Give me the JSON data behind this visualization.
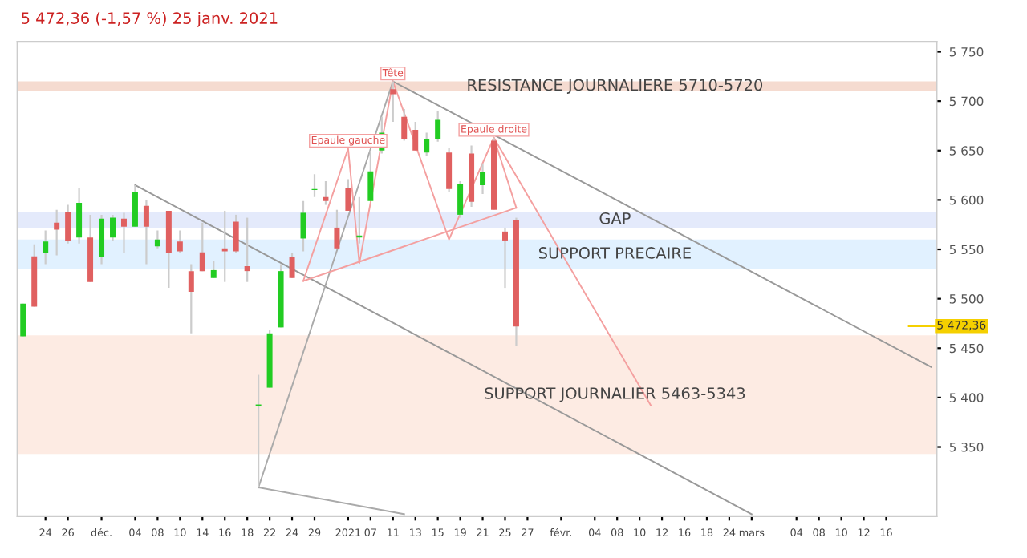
{
  "chart_data": {
    "type": "candlestick",
    "title": "5 472,36 (-1,57 %) 25 janv. 2021",
    "categories": [
      null,
      null,
      "24",
      null,
      "26",
      null,
      null,
      "déc.",
      null,
      null,
      "04",
      null,
      "08",
      null,
      "10",
      null,
      "14",
      null,
      "16",
      null,
      "18",
      null,
      "22",
      null,
      "24",
      null,
      "29",
      null,
      null,
      "2021",
      null,
      "07",
      null,
      "11",
      null,
      "13",
      null,
      "15",
      null,
      "19",
      null,
      "21",
      null,
      "25",
      null,
      "27",
      null,
      null,
      "févr.",
      null,
      null,
      "04",
      null,
      "08",
      null,
      "10",
      null,
      "12",
      null,
      "16",
      null,
      "18",
      null,
      "24",
      null,
      "mars",
      null,
      null,
      null,
      "04",
      null,
      "08",
      null,
      "10",
      null,
      "12",
      null,
      "16",
      null,
      null,
      null,
      null
    ],
    "ohlc": [
      [
        5462,
        5495,
        5462,
        5495
      ],
      [
        5543,
        5555,
        5492,
        5492
      ],
      [
        5546,
        5569,
        5535,
        5558
      ],
      [
        5577,
        5590,
        5544,
        5570
      ],
      [
        5588,
        5595,
        5556,
        5559
      ],
      [
        5562,
        5612,
        5556,
        5597
      ],
      [
        5562,
        5585,
        5517,
        5517
      ],
      [
        5542,
        5585,
        5535,
        5581
      ],
      [
        5562,
        5585,
        5559,
        5582
      ],
      [
        5581,
        5587,
        5546,
        5573
      ],
      [
        5573,
        5615,
        5573,
        5608
      ],
      [
        5594,
        5600,
        5535,
        5573
      ],
      [
        5553,
        5569,
        5551,
        5560
      ],
      [
        5589,
        5589,
        5511,
        5546
      ],
      [
        5558,
        5569,
        5546,
        5548
      ],
      [
        5528,
        5535,
        5465,
        5507
      ],
      [
        5547,
        5577,
        5528,
        5528
      ],
      [
        5521,
        5538,
        5521,
        5529
      ],
      [
        5551,
        5589,
        5517,
        5548
      ],
      [
        5578,
        5585,
        5546,
        5548
      ],
      [
        5533,
        5582,
        5517,
        5528
      ],
      [
        5391,
        5423,
        5309,
        5393
      ],
      [
        5410,
        5468,
        5410,
        5465
      ],
      [
        5471,
        5535,
        5471,
        5528
      ],
      [
        5542,
        5546,
        5521,
        5521
      ],
      [
        5561,
        5599,
        5548,
        5587
      ],
      [
        5610,
        5626,
        5603,
        5611
      ],
      [
        5603,
        5619,
        5595,
        5599
      ],
      [
        5572,
        5590,
        5551,
        5551
      ],
      [
        5612,
        5621,
        5589,
        5589
      ],
      [
        5562,
        5603,
        5556,
        5564
      ],
      [
        5599,
        5650,
        5599,
        5629
      ],
      [
        5650,
        5684,
        5647,
        5668
      ],
      [
        5712,
        5720,
        5679,
        5707
      ],
      [
        5684,
        5692,
        5660,
        5662
      ],
      [
        5671,
        5679,
        5650,
        5650
      ],
      [
        5648,
        5668,
        5645,
        5662
      ],
      [
        5662,
        5690,
        5659,
        5681
      ],
      [
        5648,
        5653,
        5608,
        5611
      ],
      [
        5585,
        5619,
        5582,
        5616
      ],
      [
        5647,
        5655,
        5593,
        5598
      ],
      [
        5615,
        5637,
        5606,
        5628
      ],
      [
        5660,
        5663,
        5590,
        5590
      ],
      [
        5568,
        5572,
        5511,
        5559
      ],
      [
        5580,
        5582,
        5452,
        5472
      ],
      null,
      null,
      null,
      null,
      null,
      null,
      null,
      null,
      null,
      null,
      null,
      null,
      null,
      null,
      null,
      null,
      null,
      null,
      null,
      null,
      null,
      null,
      null,
      null,
      null,
      null,
      null,
      null,
      null,
      null,
      null,
      null,
      null,
      null,
      null,
      null,
      null
    ],
    "colors": [
      "#22cc22",
      "#e06060",
      "#22cc22",
      "#e06060",
      "#e06060",
      "#22cc22",
      "#e06060",
      "#22cc22",
      "#22cc22",
      "#e06060",
      "#22cc22",
      "#e06060",
      "#22cc22",
      "#e06060",
      "#e06060",
      "#e06060",
      "#e06060",
      "#22cc22",
      "#e06060",
      "#e06060",
      "#e06060",
      "#22cc22",
      "#22cc22",
      "#22cc22",
      "#e06060",
      "#22cc22",
      "#22cc22",
      "#e06060",
      "#e06060",
      "#e06060",
      "#22cc22",
      "#22cc22",
      "#22cc22",
      "#e06060",
      "#e06060",
      "#e06060",
      "#22cc22",
      "#22cc22",
      "#e06060",
      "#22cc22",
      "#e06060",
      "#22cc22",
      "#e06060",
      "#e06060",
      "#e06060",
      null,
      null,
      null,
      null,
      null,
      null,
      null,
      null,
      null,
      null,
      null,
      null,
      null,
      null,
      null,
      null,
      null,
      null,
      null,
      null,
      null,
      null,
      null,
      null,
      null,
      null,
      null,
      null,
      null,
      null,
      null,
      null,
      null,
      null,
      null,
      null,
      null
    ],
    "series": [
      {
        "type": "line",
        "color": "#999999",
        "values": [
          null,
          null,
          null,
          null,
          null,
          null,
          null,
          null,
          null,
          null,
          5615,
          null,
          null,
          null,
          null,
          null,
          null,
          null,
          null,
          null,
          null,
          null,
          null,
          null,
          null,
          null,
          null,
          null,
          null,
          null,
          null,
          null,
          null,
          null,
          null,
          null,
          null,
          null,
          null,
          null,
          null,
          null,
          null,
          null,
          null,
          null,
          null,
          null,
          null,
          null,
          null,
          null,
          null,
          null,
          null,
          null,
          null,
          null,
          null,
          null,
          null,
          null,
          null,
          null,
          null,
          5282,
          null,
          null,
          null,
          null,
          null,
          null,
          null,
          null,
          null,
          null,
          null,
          null,
          null,
          null,
          null,
          null
        ]
      },
      {
        "type": "line",
        "color": "#999999",
        "values": [
          null,
          null,
          null,
          null,
          null,
          null,
          null,
          null,
          null,
          null,
          null,
          null,
          null,
          null,
          null,
          null,
          null,
          null,
          null,
          null,
          null,
          null,
          null,
          null,
          null,
          null,
          null,
          null,
          null,
          null,
          null,
          null,
          null,
          5720,
          null,
          null,
          null,
          null,
          null,
          null,
          null,
          null,
          null,
          null,
          null,
          null,
          null,
          null,
          null,
          null,
          null,
          null,
          null,
          null,
          null,
          null,
          null,
          null,
          null,
          null,
          null,
          null,
          null,
          null,
          null,
          null,
          null,
          null,
          null,
          null,
          null,
          null,
          null,
          null,
          null,
          null,
          null,
          null,
          null,
          null,
          null,
          5431
        ]
      },
      {
        "type": "line",
        "color": "#aaaaaa",
        "values": [
          null,
          null,
          null,
          null,
          null,
          null,
          null,
          null,
          null,
          null,
          null,
          null,
          null,
          null,
          null,
          null,
          null,
          null,
          null,
          null,
          null,
          5309,
          null,
          null,
          null,
          null,
          null,
          null,
          null,
          null,
          null,
          null,
          null,
          5720,
          null,
          null,
          null,
          null,
          null,
          null,
          null,
          null,
          null,
          null,
          null,
          null,
          null,
          null,
          null,
          null,
          null,
          null,
          null,
          null,
          null,
          null,
          null,
          null,
          null,
          null,
          null,
          null,
          null,
          null,
          null,
          null,
          null,
          null,
          null,
          null,
          null,
          null,
          null,
          null,
          null,
          null,
          null,
          null,
          null,
          null,
          null,
          null
        ]
      },
      {
        "type": "line",
        "color": "#aaaaaa",
        "values": [
          null,
          null,
          null,
          null,
          null,
          null,
          null,
          null,
          null,
          null,
          null,
          null,
          null,
          null,
          null,
          null,
          null,
          null,
          null,
          null,
          null,
          5309,
          null,
          null,
          null,
          null,
          null,
          null,
          null,
          null,
          null,
          null,
          null,
          null,
          5282,
          null,
          null,
          null,
          null,
          null,
          null,
          null,
          null,
          null,
          null,
          null,
          null,
          null,
          null,
          null,
          null,
          null,
          null,
          null,
          null,
          null,
          null,
          null,
          null,
          null,
          null,
          null,
          null,
          null,
          null,
          null,
          null,
          null,
          null,
          null,
          null,
          null,
          null,
          null,
          null,
          null,
          null,
          null,
          null,
          null,
          null,
          null
        ]
      },
      {
        "type": "line",
        "color": "#f4a0a0",
        "values": [
          null,
          null,
          null,
          null,
          null,
          null,
          null,
          null,
          null,
          null,
          null,
          null,
          null,
          null,
          null,
          null,
          null,
          null,
          null,
          null,
          null,
          null,
          null,
          null,
          null,
          5518,
          null,
          null,
          null,
          5652,
          5536,
          null,
          null,
          5720,
          null,
          null,
          null,
          null,
          5560,
          null,
          null,
          null,
          5663,
          null,
          5592,
          null,
          null,
          null,
          null,
          null,
          null,
          null,
          null,
          null,
          null,
          null,
          null,
          null,
          null,
          null,
          null,
          null,
          null,
          null,
          null,
          null,
          null,
          null,
          null,
          null,
          null,
          null,
          null,
          null,
          null,
          null,
          null,
          null,
          null,
          null,
          null,
          null
        ]
      },
      {
        "type": "line",
        "color": "#f4a0a0",
        "values": [
          null,
          null,
          null,
          null,
          null,
          null,
          null,
          null,
          null,
          null,
          null,
          null,
          null,
          null,
          null,
          null,
          null,
          null,
          null,
          null,
          null,
          null,
          null,
          null,
          null,
          5518,
          null,
          null,
          null,
          null,
          null,
          null,
          null,
          null,
          null,
          null,
          null,
          null,
          null,
          null,
          null,
          null,
          null,
          null,
          5592,
          null,
          null,
          null,
          null,
          null,
          null,
          null,
          null,
          null,
          null,
          null,
          null,
          null,
          null,
          null,
          null,
          null,
          null,
          null,
          null,
          null,
          null,
          null,
          null,
          null,
          null,
          null,
          null,
          null,
          null,
          null,
          null,
          null,
          null,
          null,
          null,
          null
        ]
      },
      {
        "type": "line",
        "color": "#f4a0a0",
        "values": [
          null,
          null,
          null,
          null,
          null,
          null,
          null,
          null,
          null,
          null,
          null,
          null,
          null,
          null,
          null,
          null,
          null,
          null,
          null,
          null,
          null,
          null,
          null,
          null,
          null,
          null,
          null,
          null,
          null,
          null,
          null,
          null,
          null,
          null,
          null,
          null,
          null,
          null,
          null,
          null,
          null,
          null,
          5663,
          null,
          null,
          null,
          null,
          null,
          null,
          null,
          null,
          null,
          null,
          null,
          null,
          null,
          5392,
          null,
          null,
          null,
          null,
          null,
          null,
          null,
          null,
          null,
          null,
          null,
          null,
          null,
          null,
          null,
          null,
          null,
          null,
          null,
          null,
          null,
          null,
          null,
          null,
          null
        ]
      }
    ],
    "bands": [
      {
        "axis": "y",
        "from": 5710,
        "to": 5720,
        "label": "RESISTANCE JOURNALIERE 5710-5720",
        "color": "#f3d5c8"
      },
      {
        "axis": "y",
        "from": 5572,
        "to": 5588,
        "label": "GAP",
        "color": "#dfe6fa"
      },
      {
        "axis": "y",
        "from": 5530,
        "to": 5560,
        "label": "SUPPORT PRECAIRE",
        "color": "#dcefff"
      },
      {
        "axis": "y",
        "from": 5343,
        "to": 5463,
        "label": "SUPPORT JOURNALIER 5463-5343",
        "color": "#fde8de"
      }
    ],
    "ref_lines": [
      {
        "axis": "y",
        "value": 5472.36,
        "label": "5 472,36",
        "color": "#f5d000"
      }
    ],
    "annotations": [
      {
        "text": "Tête",
        "x": "11",
        "y": 5720
      },
      "Epaule gauche",
      "Epaule droite"
    ],
    "ylim": [
      5280,
      5760
    ],
    "yticks": [
      {
        "value": 5350,
        "label": "5 350"
      },
      {
        "value": 5400,
        "label": "5 400"
      },
      {
        "value": 5450,
        "label": "5 450"
      },
      {
        "value": 5500,
        "label": "5 500"
      },
      {
        "value": 5550,
        "label": "5 550"
      },
      {
        "value": 5600,
        "label": "5 600"
      },
      {
        "value": 5650,
        "label": "5 650"
      },
      {
        "value": 5700,
        "label": "5 700"
      },
      {
        "value": 5750,
        "label": "5 750"
      }
    ]
  }
}
